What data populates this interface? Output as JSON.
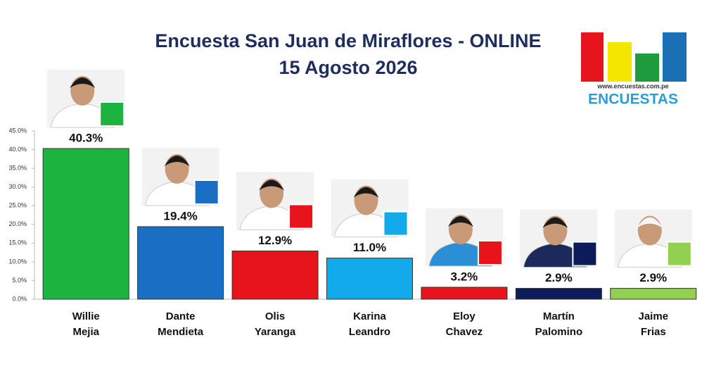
{
  "chart_data": {
    "type": "bar",
    "title": [
      "Encuesta San Juan de Miraflores -  ONLINE",
      "15 Agosto 2026"
    ],
    "logo": {
      "url": "www.encuestas.com.pe",
      "name": "ENCUESTAS"
    },
    "categories": [
      [
        "Willie",
        "Mejia"
      ],
      [
        "Dante",
        "Mendieta"
      ],
      [
        "Olis",
        "Yaranga"
      ],
      [
        "Karina",
        "Leandro"
      ],
      [
        "Eloy",
        "Chavez"
      ],
      [
        "Martín",
        "Palomino"
      ],
      [
        "Jaime",
        "Frias"
      ]
    ],
    "values": [
      40.3,
      19.4,
      12.9,
      11.0,
      3.2,
      2.9,
      2.9
    ],
    "value_labels": [
      "40.3%",
      "19.4%",
      "12.9%",
      "11.0%",
      "3.2%",
      "2.9%",
      "2.9%"
    ],
    "colors": [
      "#1db33f",
      "#1a6fc4",
      "#e8141b",
      "#12aaeb",
      "#e8141b",
      "#0c1c5a",
      "#92d050"
    ],
    "ylim": [
      0,
      45
    ],
    "yticks": [
      {
        "value": 0,
        "label": "0.0%"
      },
      {
        "value": 5,
        "label": "5.0%"
      },
      {
        "value": 10,
        "label": "10.0%"
      },
      {
        "value": 15,
        "label": "15.0%"
      },
      {
        "value": 20,
        "label": "20.0%"
      },
      {
        "value": 25,
        "label": "25.0%"
      },
      {
        "value": 30,
        "label": "30.0%"
      },
      {
        "value": 35,
        "label": "35.0%"
      },
      {
        "value": 40,
        "label": "40.0%"
      },
      {
        "value": 45,
        "label": "45.0%"
      }
    ],
    "grid": false
  }
}
